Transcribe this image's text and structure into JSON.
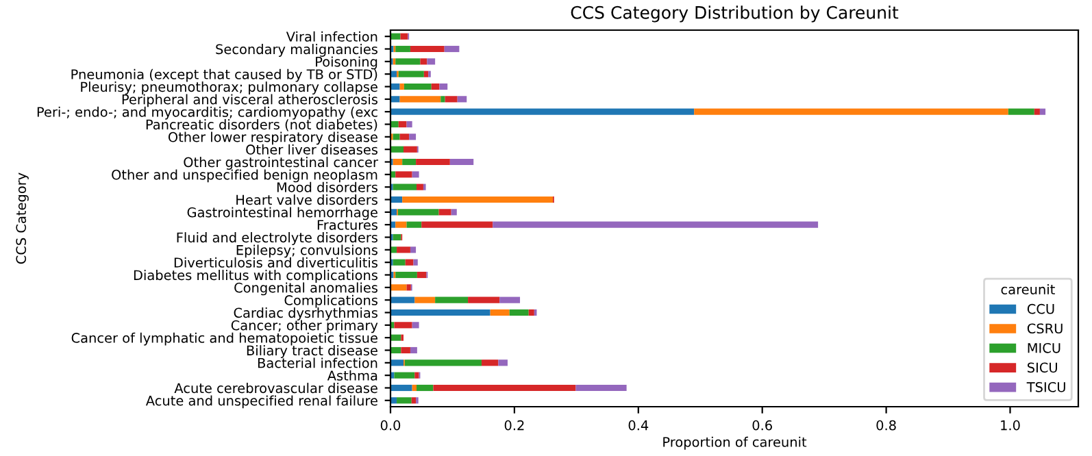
{
  "chart_data": {
    "type": "bar",
    "orientation": "horizontal",
    "stacked": true,
    "title": "CCS Category Distribution by Careunit",
    "xlabel": "Proportion of careunit",
    "ylabel": "CCS Category",
    "legend_title": "careunit",
    "legend": "bottom right",
    "grid": false,
    "xlim": [
      0,
      1.11
    ],
    "xticks": [
      {
        "value": 0,
        "label": "0.0"
      },
      {
        "value": 0.2,
        "label": "0.2"
      },
      {
        "value": 0.4,
        "label": "0.4"
      },
      {
        "value": 0.6,
        "label": "0.6"
      },
      {
        "value": 0.8,
        "label": "0.8"
      },
      {
        "value": 1.0,
        "label": "1.0"
      }
    ],
    "categories": [
      "Viral infection",
      "Secondary malignancies",
      "Poisoning",
      "Pneumonia (except that caused by TB or STD)",
      "Pleurisy; pneumothorax; pulmonary collapse",
      "Peripheral and visceral atherosclerosis",
      "Peri-; endo-; and myocarditis; cardiomyopathy (exc",
      "Pancreatic disorders (not diabetes)",
      "Other lower respiratory disease",
      "Other liver diseases",
      "Other gastrointestinal cancer",
      "Other and unspecified benign neoplasm",
      "Mood disorders",
      "Heart valve disorders",
      "Gastrointestinal hemorrhage",
      "Fractures",
      "Fluid and electrolyte disorders",
      "Epilepsy; convulsions",
      "Diverticulosis and diverticulitis",
      "Diabetes mellitus with complications",
      "Congenital anomalies",
      "Complications",
      "Cardiac dysrhythmias",
      "Cancer; other primary",
      "Cancer of lymphatic and hematopoietic tissue",
      "Biliary tract disease",
      "Bacterial infection",
      "Asthma",
      "Acute cerebrovascular disease",
      "Acute and unspecified renal failure"
    ],
    "series": [
      {
        "name": "CCU",
        "color": "#1f77b4",
        "values": [
          0,
          0.005,
          0.004,
          0.01,
          0.015,
          0.015,
          0.49,
          0,
          0,
          0,
          0.004,
          0,
          0.004,
          0.019,
          0.01,
          0.008,
          0.004,
          0,
          0.004,
          0.005,
          0,
          0.039,
          0.161,
          0,
          0,
          0,
          0.021,
          0.006,
          0.035,
          0.01
        ]
      },
      {
        "name": "CSRU",
        "color": "#ff7f0e",
        "values": [
          0,
          0.003,
          0.004,
          0.003,
          0.007,
          0.066,
          0.507,
          0,
          0.004,
          0,
          0.015,
          0,
          0,
          0.243,
          0.002,
          0.018,
          0,
          0,
          0,
          0.003,
          0.026,
          0.033,
          0.031,
          0,
          0,
          0,
          0.002,
          0,
          0.007,
          0
        ]
      },
      {
        "name": "MICU",
        "color": "#2ca02c",
        "values": [
          0.016,
          0.024,
          0.04,
          0.041,
          0.044,
          0.007,
          0.042,
          0.013,
          0.011,
          0.021,
          0.022,
          0.008,
          0.038,
          0,
          0.066,
          0.024,
          0.013,
          0.01,
          0.02,
          0.035,
          0,
          0.053,
          0.031,
          0.006,
          0.017,
          0.017,
          0.124,
          0.033,
          0.027,
          0.024
        ]
      },
      {
        "name": "SICU",
        "color": "#d62728",
        "values": [
          0.012,
          0.055,
          0.011,
          0.007,
          0.013,
          0.02,
          0.009,
          0.013,
          0.015,
          0.022,
          0.055,
          0.027,
          0.011,
          0.002,
          0.02,
          0.115,
          0.002,
          0.022,
          0.013,
          0.015,
          0.007,
          0.051,
          0.009,
          0.029,
          0.004,
          0.015,
          0.027,
          0.007,
          0.23,
          0.007
        ]
      },
      {
        "name": "TSICU",
        "color": "#9467bd",
        "values": [
          0.002,
          0.024,
          0.013,
          0.004,
          0.013,
          0.015,
          0.009,
          0.009,
          0.011,
          0.002,
          0.038,
          0.011,
          0.004,
          0,
          0.009,
          0.525,
          0,
          0.009,
          0.007,
          0.002,
          0.002,
          0.033,
          0.004,
          0.011,
          0,
          0.011,
          0.015,
          0.002,
          0.082,
          0.004
        ]
      }
    ]
  }
}
